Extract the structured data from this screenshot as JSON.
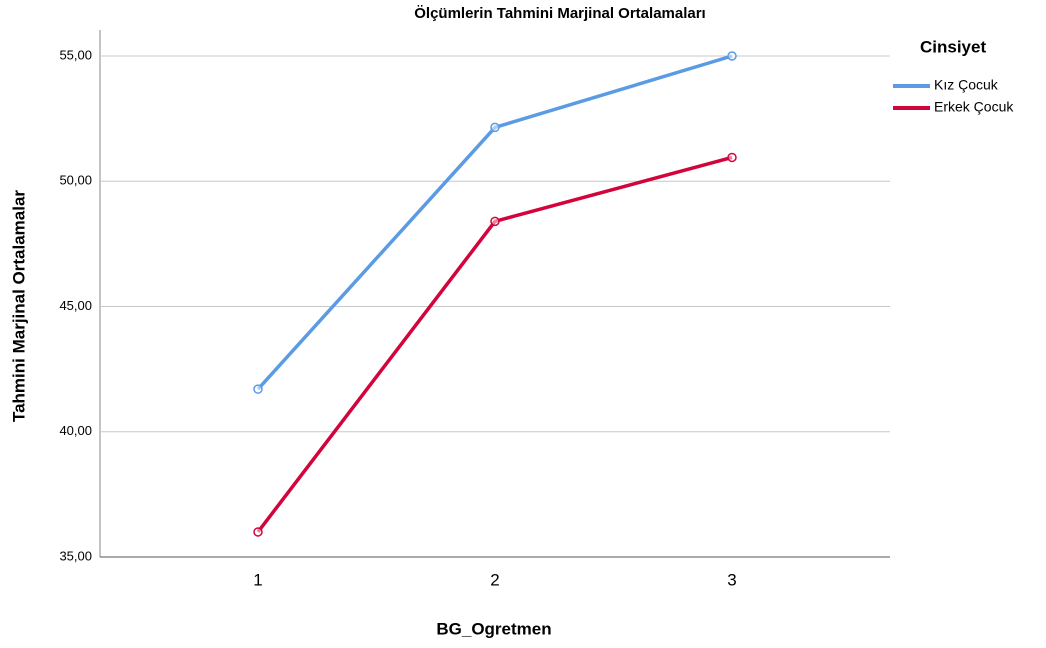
{
  "chart_data": {
    "type": "line",
    "title": "Ölçümlerin Tahmini Marjinal Ortalamaları",
    "x_label": "BG_Ogretmen",
    "y_label": "Tahmini Marjinal Ortalamalar",
    "legend_title": "Cinsiyet",
    "legend": "top-right-outside",
    "grid": true,
    "categories": [
      "1",
      "2",
      "3"
    ],
    "series": [
      {
        "name": "Kız Çocuk",
        "color": "#5b9be3",
        "values": [
          41.7,
          52.15,
          55.0
        ]
      },
      {
        "name": "Erkek Çocuk",
        "color": "#d2043b",
        "values": [
          36.0,
          48.4,
          50.95
        ]
      }
    ],
    "ylim": [
      35,
      55
    ],
    "yticks": [
      {
        "value": 35,
        "label": "35,00"
      },
      {
        "value": 40,
        "label": "40,00"
      },
      {
        "value": 45,
        "label": "45,00"
      },
      {
        "value": 50,
        "label": "50,00"
      },
      {
        "value": 55,
        "label": "55,00"
      }
    ]
  }
}
